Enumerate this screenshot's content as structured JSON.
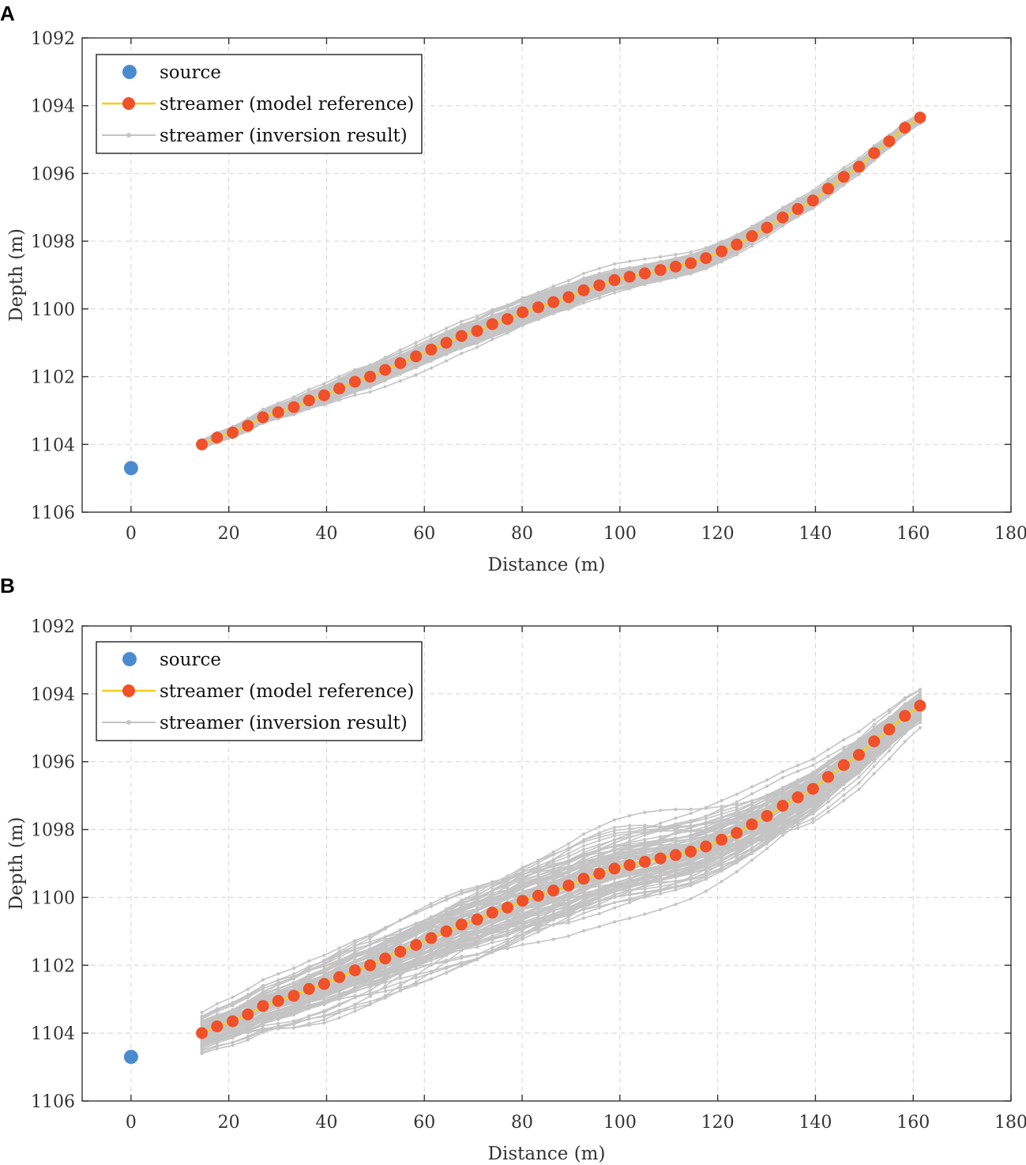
{
  "chart_data": [
    {
      "panel_label": "A",
      "type": "line",
      "title": "",
      "xlabel": "Distance (m)",
      "ylabel": "Depth (m)",
      "xlim": [
        -10,
        180
      ],
      "ylim": [
        1092,
        1106
      ],
      "y_inverted": true,
      "xticks": [
        0,
        20,
        40,
        60,
        80,
        100,
        120,
        140,
        160,
        180
      ],
      "yticks": [
        1092,
        1094,
        1096,
        1098,
        1100,
        1102,
        1104,
        1106
      ],
      "grid": true,
      "legend": {
        "placement": "top-left",
        "entries": [
          "source",
          "streamer (model reference)",
          "streamer (inversion result)"
        ]
      },
      "colors": {
        "source": "#4a8bd0",
        "reference_line": "#f7cc1e",
        "reference_marker": "#f0502a",
        "inversion": "#c4c4c4"
      },
      "source": {
        "x": 0,
        "y": 1104.7
      },
      "reference": {
        "x": [
          14.5,
          17.6,
          20.8,
          23.9,
          27.0,
          30.1,
          33.3,
          36.4,
          39.5,
          42.6,
          45.8,
          48.9,
          52.0,
          55.1,
          58.3,
          61.4,
          64.5,
          67.6,
          70.8,
          73.9,
          77.0,
          80.1,
          83.3,
          86.4,
          89.5,
          92.6,
          95.8,
          98.9,
          102.0,
          105.1,
          108.3,
          111.4,
          114.5,
          117.6,
          120.8,
          123.9,
          127.0,
          130.1,
          133.3,
          136.4,
          139.5,
          142.6,
          145.8,
          148.9,
          152.0,
          155.1,
          158.3,
          161.4
        ],
        "y": [
          1104.0,
          1103.8,
          1103.65,
          1103.45,
          1103.2,
          1103.05,
          1102.9,
          1102.7,
          1102.55,
          1102.35,
          1102.15,
          1102.0,
          1101.8,
          1101.6,
          1101.4,
          1101.2,
          1101.0,
          1100.8,
          1100.65,
          1100.45,
          1100.3,
          1100.1,
          1099.95,
          1099.8,
          1099.65,
          1099.45,
          1099.3,
          1099.15,
          1099.05,
          1098.95,
          1098.85,
          1098.75,
          1098.65,
          1098.5,
          1098.3,
          1098.1,
          1097.85,
          1097.6,
          1097.3,
          1097.05,
          1096.8,
          1096.45,
          1096.1,
          1095.8,
          1095.4,
          1095.05,
          1094.65,
          1094.35
        ]
      },
      "inversion": {
        "n_realizations": 100,
        "spread_m": {
          "min": 0.12,
          "max": 0.35
        }
      }
    },
    {
      "panel_label": "B",
      "type": "line",
      "title": "",
      "xlabel": "Distance (m)",
      "ylabel": "Depth (m)",
      "xlim": [
        -10,
        180
      ],
      "ylim": [
        1092,
        1106
      ],
      "y_inverted": true,
      "xticks": [
        0,
        20,
        40,
        60,
        80,
        100,
        120,
        140,
        160,
        180
      ],
      "yticks": [
        1092,
        1094,
        1096,
        1098,
        1100,
        1102,
        1104,
        1106
      ],
      "grid": true,
      "legend": {
        "placement": "top-left",
        "entries": [
          "source",
          "streamer (model reference)",
          "streamer (inversion result)"
        ]
      },
      "colors": {
        "source": "#4a8bd0",
        "reference_line": "#f7cc1e",
        "reference_marker": "#f0502a",
        "inversion": "#c4c4c4"
      },
      "source": {
        "x": 0,
        "y": 1104.7
      },
      "reference": {
        "x": [
          14.5,
          17.6,
          20.8,
          23.9,
          27.0,
          30.1,
          33.3,
          36.4,
          39.5,
          42.6,
          45.8,
          48.9,
          52.0,
          55.1,
          58.3,
          61.4,
          64.5,
          67.6,
          70.8,
          73.9,
          77.0,
          80.1,
          83.3,
          86.4,
          89.5,
          92.6,
          95.8,
          98.9,
          102.0,
          105.1,
          108.3,
          111.4,
          114.5,
          117.6,
          120.8,
          123.9,
          127.0,
          130.1,
          133.3,
          136.4,
          139.5,
          142.6,
          145.8,
          148.9,
          152.0,
          155.1,
          158.3,
          161.4
        ],
        "y": [
          1104.0,
          1103.8,
          1103.65,
          1103.45,
          1103.2,
          1103.05,
          1102.9,
          1102.7,
          1102.55,
          1102.35,
          1102.15,
          1102.0,
          1101.8,
          1101.6,
          1101.4,
          1101.2,
          1101.0,
          1100.8,
          1100.65,
          1100.45,
          1100.3,
          1100.1,
          1099.95,
          1099.8,
          1099.65,
          1099.45,
          1099.3,
          1099.15,
          1099.05,
          1098.95,
          1098.85,
          1098.75,
          1098.65,
          1098.5,
          1098.3,
          1098.1,
          1097.85,
          1097.6,
          1097.3,
          1097.05,
          1096.8,
          1096.45,
          1096.1,
          1095.8,
          1095.4,
          1095.05,
          1094.65,
          1094.35
        ]
      },
      "inversion": {
        "n_realizations": 100,
        "spread_m": {
          "min": 0.45,
          "max": 1.05
        }
      }
    }
  ]
}
